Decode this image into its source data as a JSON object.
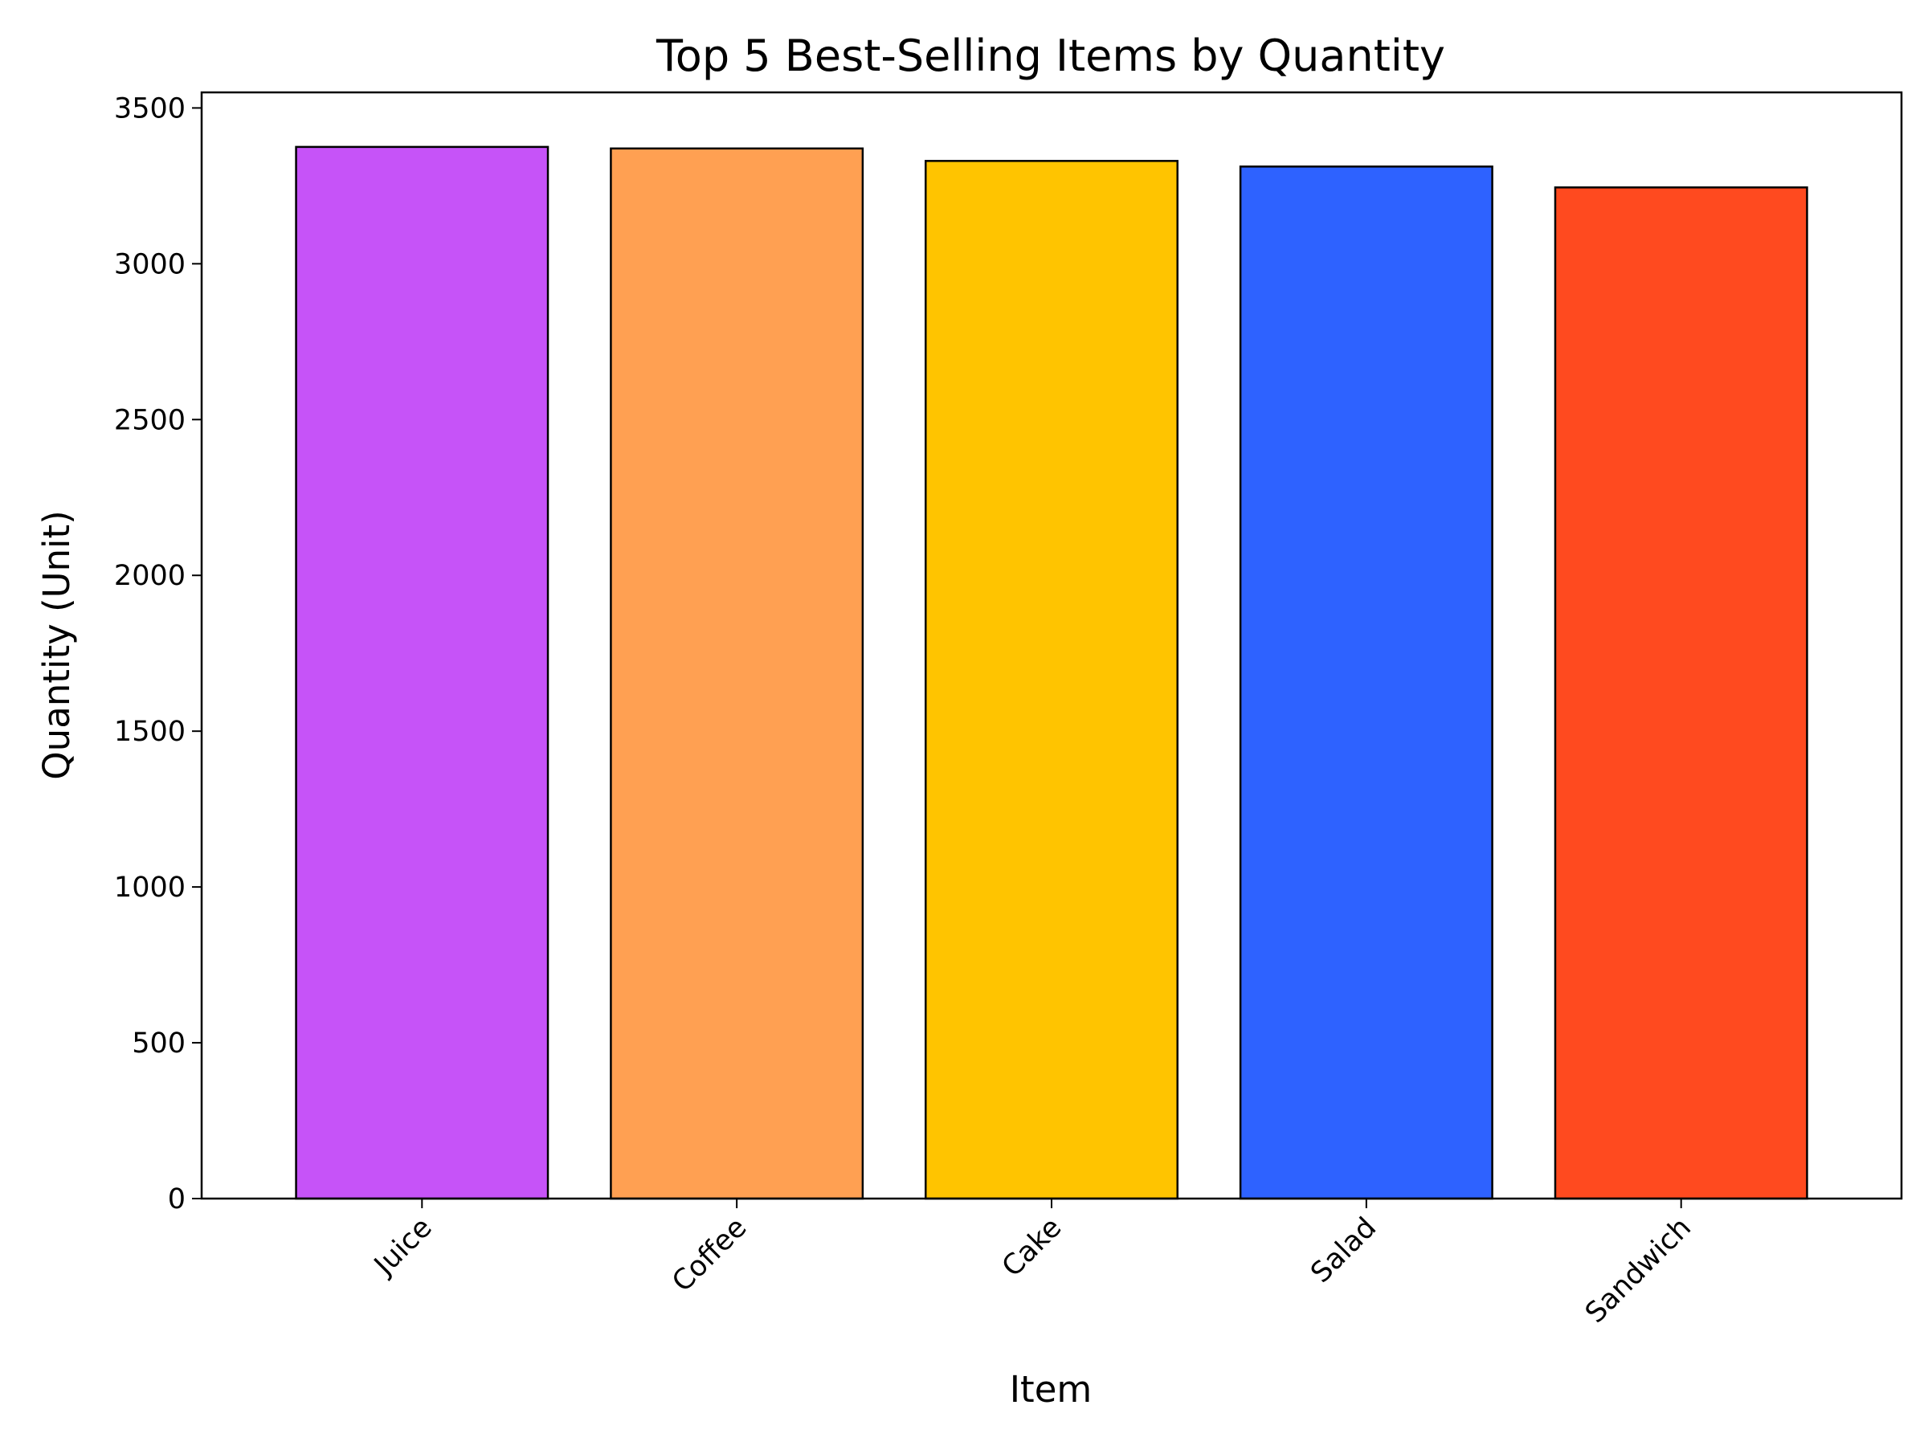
{
  "chart_data": {
    "type": "bar",
    "title": "Top 5 Best-Selling Items by Quantity",
    "xlabel": "Item",
    "ylabel": "Quantity (Unit)",
    "categories": [
      "Juice",
      "Coffee",
      "Cake",
      "Salad",
      "Sandwich"
    ],
    "values": [
      3375,
      3370,
      3330,
      3312,
      3245
    ],
    "colors": [
      "#c653f8",
      "#ffa052",
      "#ffc400",
      "#2e62ff",
      "#ff4a1f"
    ],
    "edge_color": "#000000",
    "ylim": [
      0,
      3550
    ],
    "yticks": [
      0,
      500,
      1000,
      1500,
      2000,
      2500,
      3000,
      3500
    ],
    "ytick_labels": [
      "0",
      "500",
      "1000",
      "1500",
      "2000",
      "2500",
      "3000",
      "3500"
    ],
    "grid": false,
    "legend": "none"
  }
}
